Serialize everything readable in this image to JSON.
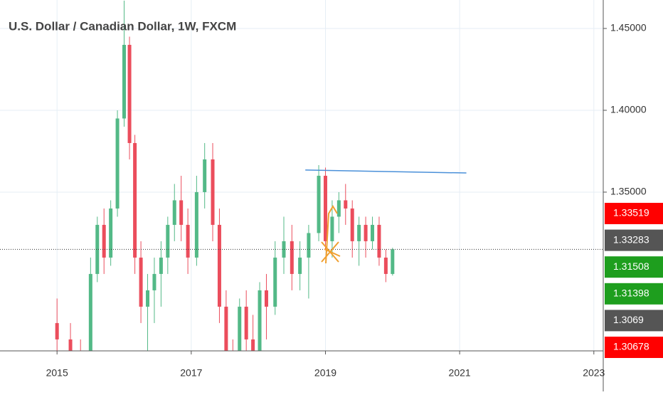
{
  "chart_data": {
    "type": "candlestick",
    "title": "U.S. Dollar / Canadian Dollar, 1W, FXCM",
    "x": [
      2015.0,
      2015.2,
      2015.35,
      2015.5,
      2015.6,
      2015.7,
      2015.8,
      2015.9,
      2016.0,
      2016.08,
      2016.16,
      2016.25,
      2016.35,
      2016.45,
      2016.55,
      2016.65,
      2016.75,
      2016.85,
      2016.95,
      2017.08,
      2017.2,
      2017.32,
      2017.42,
      2017.52,
      2017.62,
      2017.72,
      2017.82,
      2017.92,
      2018.02,
      2018.12,
      2018.25,
      2018.38,
      2018.5,
      2018.62,
      2018.75,
      2018.9,
      2019.0,
      2019.1,
      2019.2,
      2019.3,
      2019.4,
      2019.5,
      2019.6,
      2019.7,
      2019.8,
      2019.9,
      2020.0
    ],
    "open": [
      1.27,
      1.26,
      1.25,
      1.24,
      1.3,
      1.33,
      1.31,
      1.34,
      1.395,
      1.44,
      1.38,
      1.31,
      1.28,
      1.29,
      1.3,
      1.31,
      1.33,
      1.345,
      1.33,
      1.31,
      1.35,
      1.37,
      1.33,
      1.28,
      1.25,
      1.24,
      1.28,
      1.26,
      1.25,
      1.29,
      1.28,
      1.31,
      1.32,
      1.3,
      1.31,
      1.325,
      1.36,
      1.32,
      1.335,
      1.345,
      1.34,
      1.32,
      1.33,
      1.32,
      1.33,
      1.31,
      1.3
    ],
    "high": [
      1.285,
      1.27,
      1.26,
      1.31,
      1.335,
      1.34,
      1.345,
      1.4,
      1.467,
      1.445,
      1.385,
      1.32,
      1.3,
      1.31,
      1.32,
      1.335,
      1.355,
      1.36,
      1.34,
      1.36,
      1.38,
      1.38,
      1.34,
      1.29,
      1.26,
      1.285,
      1.29,
      1.275,
      1.295,
      1.3,
      1.32,
      1.335,
      1.33,
      1.32,
      1.33,
      1.3665,
      1.365,
      1.345,
      1.35,
      1.355,
      1.345,
      1.335,
      1.335,
      1.335,
      1.335,
      1.315,
      1.316
    ],
    "low": [
      1.25,
      1.24,
      1.23,
      1.235,
      1.295,
      1.3,
      1.305,
      1.335,
      1.39,
      1.37,
      1.3,
      1.27,
      1.25,
      1.27,
      1.28,
      1.3,
      1.32,
      1.32,
      1.3,
      1.305,
      1.34,
      1.32,
      1.27,
      1.24,
      1.22,
      1.235,
      1.25,
      1.24,
      1.245,
      1.26,
      1.275,
      1.3,
      1.29,
      1.29,
      1.285,
      1.32,
      1.315,
      1.31,
      1.325,
      1.33,
      1.31,
      1.305,
      1.31,
      1.315,
      1.305,
      1.295,
      1.299
    ],
    "close": [
      1.26,
      1.25,
      1.24,
      1.3,
      1.33,
      1.31,
      1.34,
      1.395,
      1.44,
      1.38,
      1.31,
      1.28,
      1.29,
      1.3,
      1.31,
      1.33,
      1.345,
      1.33,
      1.31,
      1.35,
      1.37,
      1.33,
      1.28,
      1.25,
      1.24,
      1.28,
      1.26,
      1.25,
      1.29,
      1.28,
      1.31,
      1.32,
      1.3,
      1.31,
      1.325,
      1.36,
      1.32,
      1.335,
      1.345,
      1.34,
      1.32,
      1.33,
      1.32,
      1.33,
      1.31,
      1.3,
      1.315
    ],
    "up_color": "#53b987",
    "down_color": "#eb4d5c",
    "xlim": [
      2014.15,
      2023.14
    ],
    "xticks": [
      2015,
      2017,
      2019,
      2021,
      2023
    ],
    "ylim": [
      1.253,
      1.4674
    ],
    "yticks": [
      {
        "value": 1.35,
        "label": "1.35000"
      },
      {
        "value": 1.4,
        "label": "1.40000"
      },
      {
        "value": 1.45,
        "label": "1.45000"
      }
    ],
    "grid": true,
    "trend_line": {
      "x": [
        2018.7,
        2021.1
      ],
      "y": [
        1.3635,
        1.3617
      ],
      "color": "#4a90d9"
    },
    "price_labels": [
      {
        "value": 1.33519,
        "color": "#ff0000"
      },
      {
        "value": 1.33283,
        "color": "#555555"
      },
      {
        "value": 1.31508,
        "color": "#1e9e1e"
      },
      {
        "value": 1.31398,
        "color": "#1e9e1e"
      },
      {
        "value": 1.3069,
        "color": "#555555"
      },
      {
        "value": 1.30678,
        "color": "#ff0000"
      }
    ]
  }
}
